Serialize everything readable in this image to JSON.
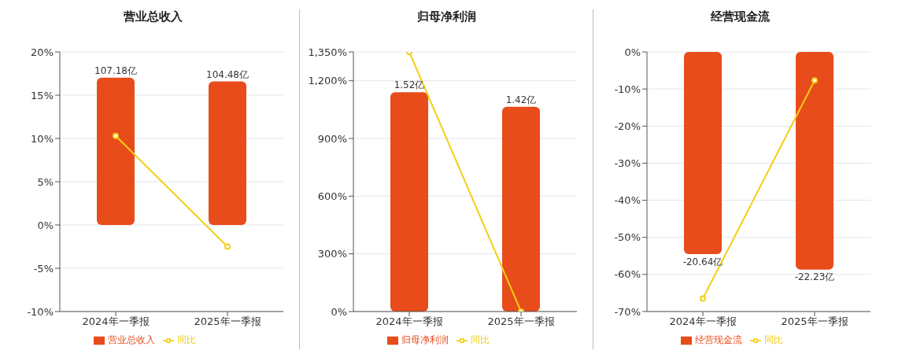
{
  "chart_data": [
    {
      "type": "bar",
      "title": "营业总收入",
      "categories": [
        "2024年一季报",
        "2025年一季报"
      ],
      "ylim": [
        -10,
        20
      ],
      "yticks": [
        {
          "value": -10,
          "label": "-10%"
        },
        {
          "value": -5,
          "label": "-5%"
        },
        {
          "value": 0,
          "label": "0%"
        },
        {
          "value": 5,
          "label": "5%"
        },
        {
          "value": 10,
          "label": "10%"
        },
        {
          "value": 15,
          "label": "15%"
        },
        {
          "value": 20,
          "label": "20%"
        }
      ],
      "y2lim": [
        -63,
        126
      ],
      "grid": "y",
      "legend": "bottom",
      "marker": "circle",
      "series": [
        {
          "name": "营业总收入",
          "color": "#e84c1a",
          "values": [
            107.18,
            104.48
          ],
          "value_labels": [
            "107.18亿",
            "104.48亿"
          ],
          "axis": "y2"
        },
        {
          "name": "同比",
          "type": "line",
          "color": "#f2cf14",
          "values": [
            10.3,
            -2.5
          ]
        }
      ]
    },
    {
      "type": "bar",
      "title": "归母净利润",
      "categories": [
        "2024年一季报",
        "2025年一季报"
      ],
      "ylim": [
        0,
        1350
      ],
      "yticks": [
        {
          "value": 0,
          "label": "0%"
        },
        {
          "value": 300,
          "label": "300%"
        },
        {
          "value": 600,
          "label": "600%"
        },
        {
          "value": 900,
          "label": "900%"
        },
        {
          "value": 1200,
          "label": "1,200%"
        },
        {
          "value": 1350,
          "label": "1,350%"
        }
      ],
      "y2lim": [
        0,
        1.8
      ],
      "grid": "y",
      "legend": "bottom",
      "marker": "circle",
      "series": [
        {
          "name": "归母净利润",
          "color": "#e84c1a",
          "values": [
            1.52,
            1.42
          ],
          "value_labels": [
            "1.52亿",
            "1.42亿"
          ],
          "axis": "y2"
        },
        {
          "name": "同比",
          "type": "line",
          "color": "#f2cf14",
          "values": [
            1350,
            0
          ]
        }
      ]
    },
    {
      "type": "bar",
      "title": "经营现金流",
      "categories": [
        "2024年一季报",
        "2025年一季报"
      ],
      "ylim": [
        -70,
        0
      ],
      "yticks": [
        {
          "value": -70,
          "label": "-70%"
        },
        {
          "value": -60,
          "label": "-60%"
        },
        {
          "value": -50,
          "label": "-50%"
        },
        {
          "value": -40,
          "label": "-40%"
        },
        {
          "value": -30,
          "label": "-30%"
        },
        {
          "value": -20,
          "label": "-20%"
        },
        {
          "value": -10,
          "label": "-10%"
        },
        {
          "value": 0,
          "label": "0%"
        }
      ],
      "y2lim": [
        -26.5,
        0
      ],
      "grid": "y",
      "legend": "bottom",
      "marker": "circle",
      "series": [
        {
          "name": "经营现金流",
          "color": "#e84c1a",
          "values": [
            -20.64,
            -22.23
          ],
          "value_labels": [
            "-20.64亿",
            "-22.23亿"
          ],
          "axis": "y2"
        },
        {
          "name": "同比",
          "type": "line",
          "color": "#f2cf14",
          "values": [
            -66.5,
            -7.7
          ]
        }
      ]
    }
  ]
}
